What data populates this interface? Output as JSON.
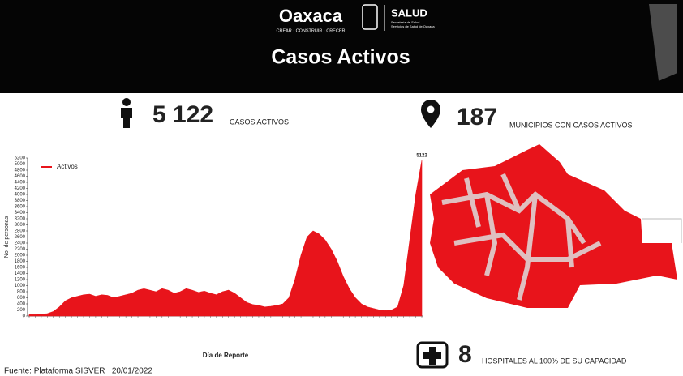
{
  "header": {
    "logo": "Oaxaca",
    "slogan": "CREAR · CONSTRUIR · CRECER",
    "agency": "SALUD",
    "agency_sub1": "Secretaría de Salud",
    "agency_sub2": "Servicios de Salud de Oaxaca",
    "title": "Casos Activos"
  },
  "stats": [
    {
      "number": "5 122",
      "label": "CASOS ACTIVOS"
    },
    {
      "number": "187",
      "label": "MUNICIPIOS CON CASOS ACTIVOS"
    },
    {
      "number": "8",
      "label": "HOSPITALES AL 100% DE SU CAPACIDAD"
    }
  ],
  "footer": "Fuente: Plataforma SISVER   20/01/2022",
  "chart_data": {
    "type": "area",
    "x_label": "Día de Reporte",
    "y_label": "No. de personas",
    "categories": [
      null,
      null,
      null,
      null,
      null,
      null,
      null,
      null,
      null,
      null,
      null,
      null,
      null,
      null,
      null,
      null,
      null,
      null,
      null,
      null,
      null,
      null,
      null,
      null,
      null,
      null,
      null,
      null,
      null,
      null,
      null,
      null,
      null,
      null,
      null,
      null,
      null,
      null,
      null,
      null,
      null,
      null,
      null,
      null,
      null,
      null,
      null,
      null,
      null,
      null,
      null,
      null,
      null,
      null,
      null,
      null,
      null,
      null,
      null,
      null,
      null,
      null,
      null,
      null,
      null,
      null
    ],
    "series": [
      {
        "name": "Activos",
        "color": "#e8141b",
        "values": [
          50,
          50,
          60,
          80,
          150,
          300,
          500,
          600,
          650,
          700,
          720,
          650,
          700,
          680,
          600,
          650,
          700,
          750,
          850,
          900,
          850,
          800,
          900,
          850,
          750,
          800,
          900,
          850,
          780,
          820,
          750,
          700,
          800,
          850,
          750,
          600,
          450,
          380,
          350,
          300,
          320,
          350,
          400,
          600,
          1200,
          2000,
          2600,
          2800,
          2700,
          2500,
          2200,
          1800,
          1300,
          900,
          600,
          400,
          300,
          250,
          200,
          180,
          200,
          300,
          1000,
          2500,
          4000,
          5122
        ]
      }
    ],
    "ylim": [
      0,
      5200
    ],
    "yticks": [
      0,
      200,
      400,
      600,
      800,
      1000,
      1200,
      1400,
      1600,
      1800,
      2000,
      2200,
      2400,
      2600,
      2800,
      3000,
      3200,
      3400,
      3600,
      3800,
      4000,
      4200,
      4400,
      4600,
      4800,
      5000,
      5200
    ],
    "grid": false,
    "legend": "upper-left"
  }
}
